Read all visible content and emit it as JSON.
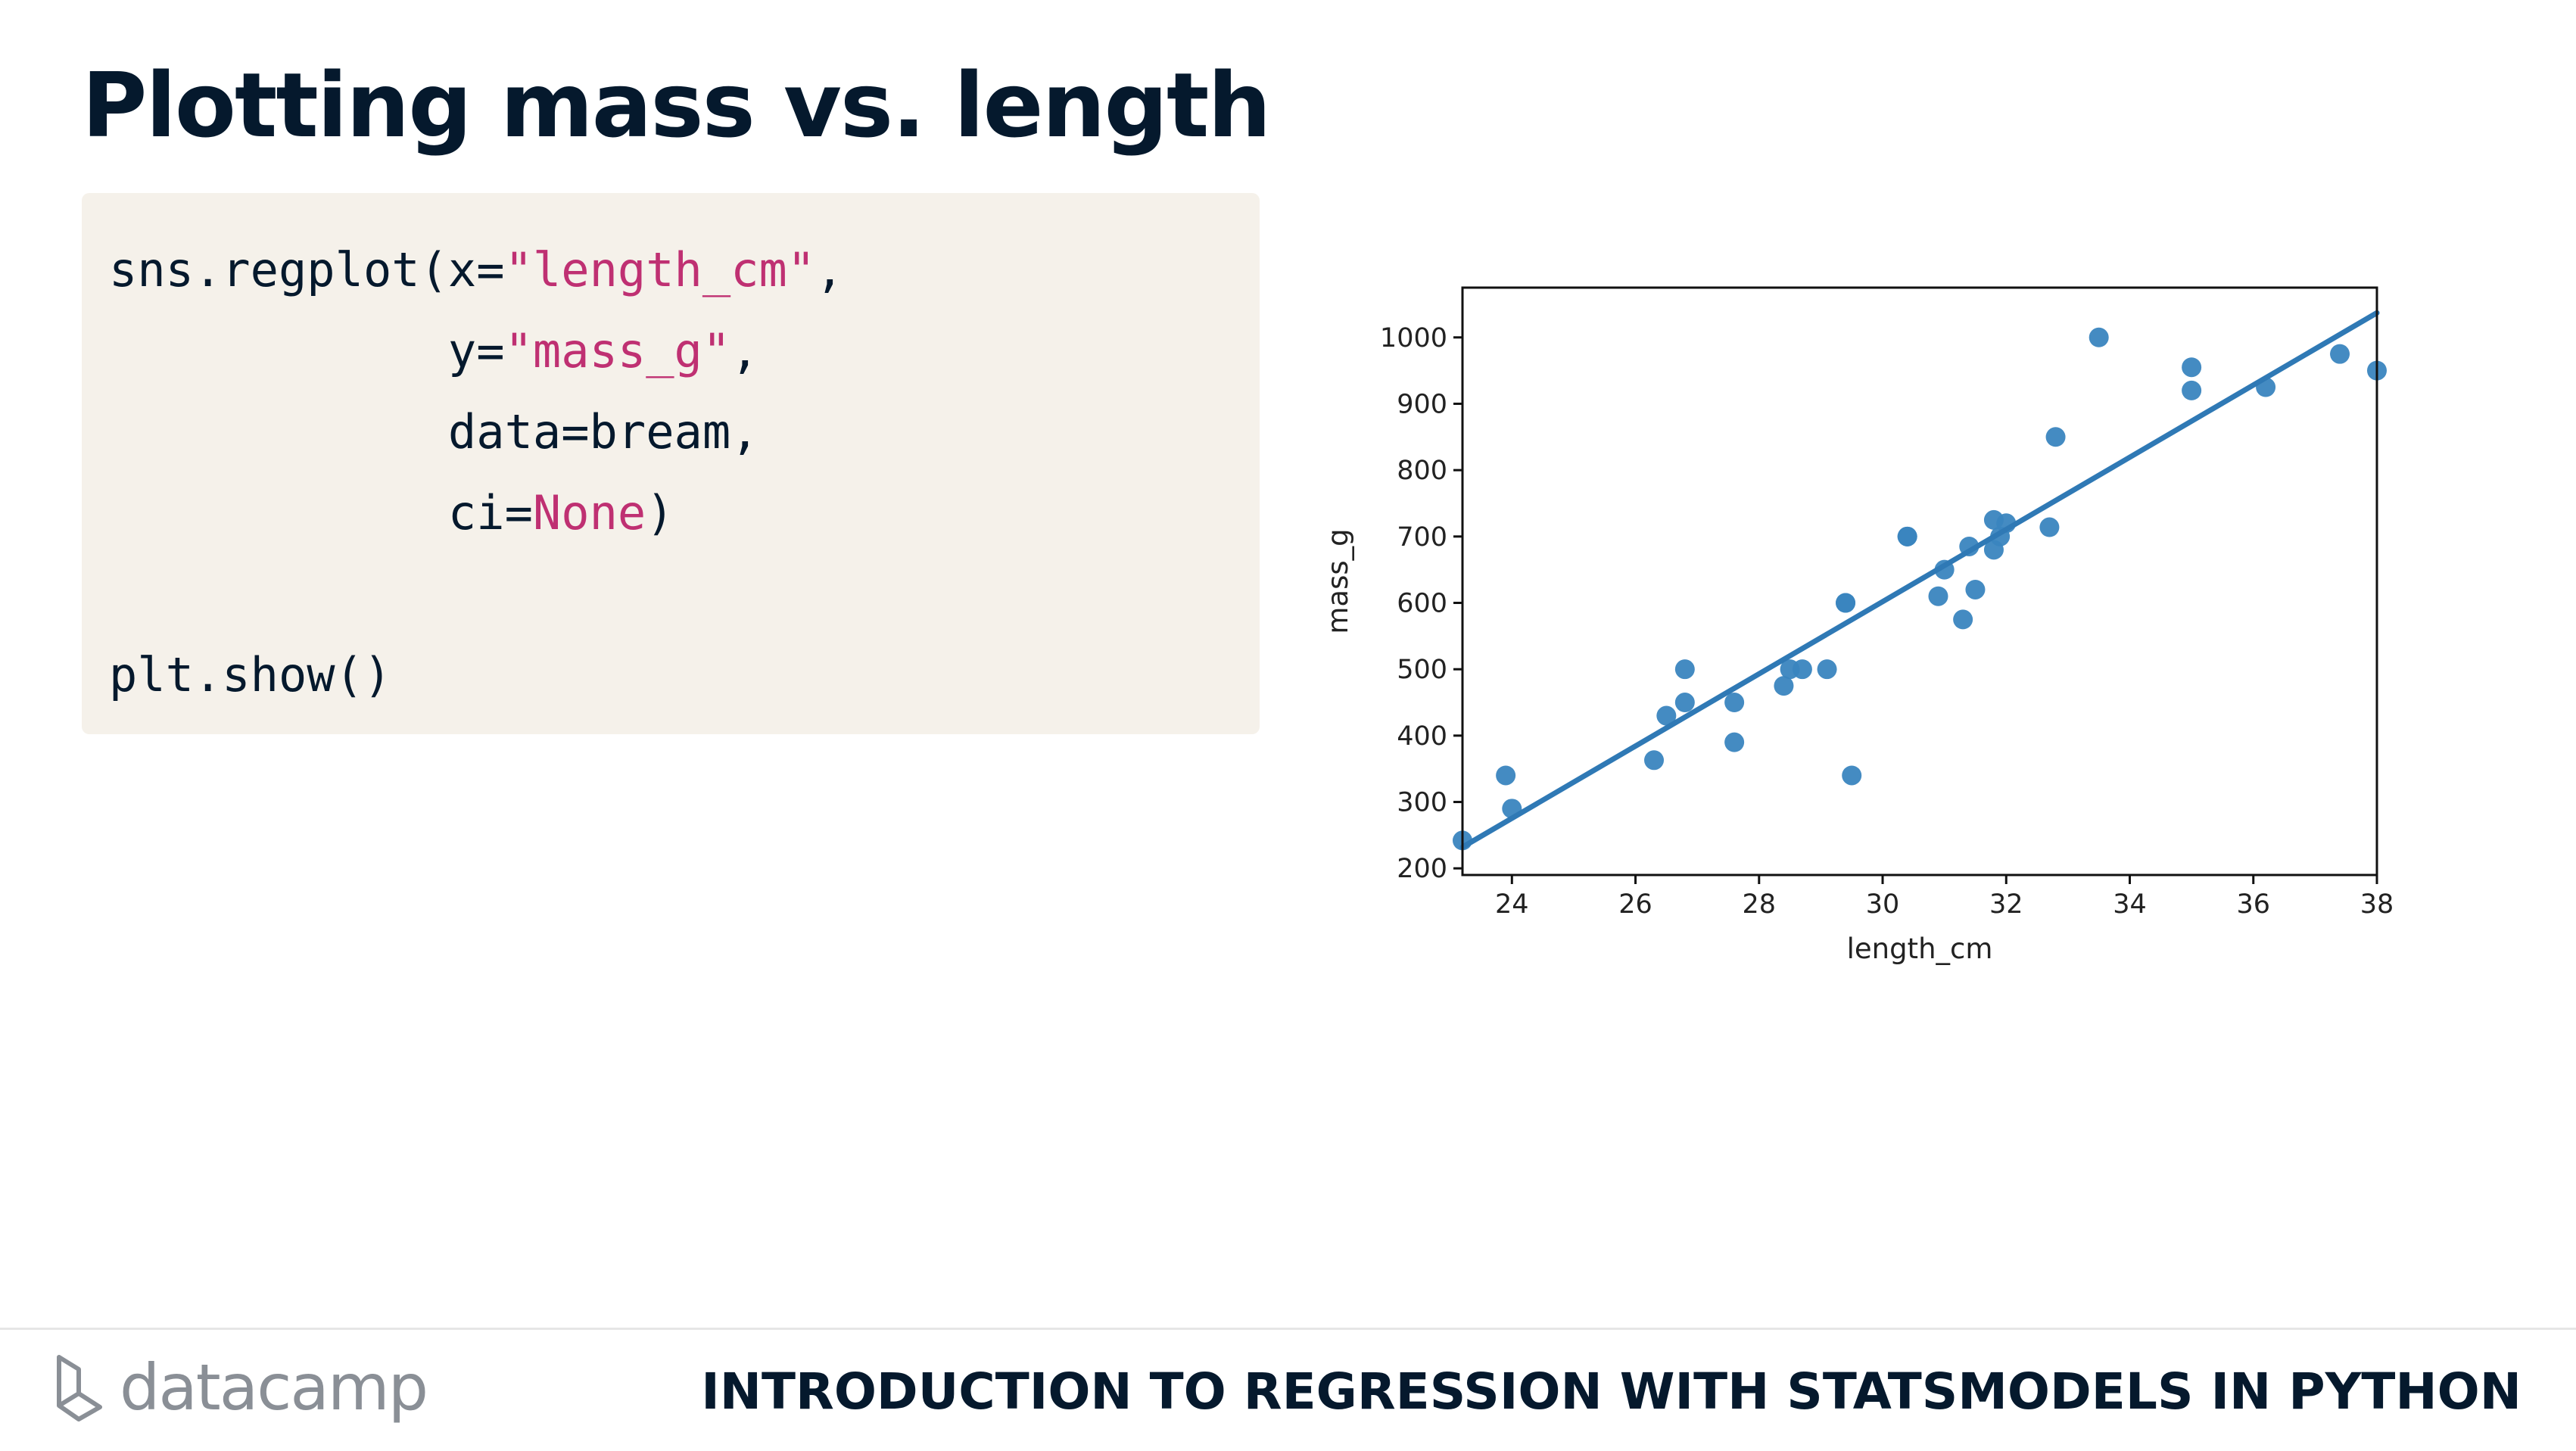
{
  "slide": {
    "title": "Plotting mass vs. length",
    "course_title": "INTRODUCTION TO REGRESSION WITH STATSMODELS IN PYTHON",
    "logo_text": "datacamp"
  },
  "code": {
    "l1_a": "sns.regplot(x=",
    "l1_s": "\"length_cm\"",
    "l1_b": ",",
    "l2_a": "            y=",
    "l2_s": "\"mass_g\"",
    "l2_b": ",",
    "l3": "            data=bream,",
    "l4_a": "            ci=",
    "l4_s": "None",
    "l4_b": ")",
    "l6": "plt.show()"
  },
  "colors": {
    "title": "#05192d",
    "code_bg": "#f5f1ea",
    "string": "#bf3072",
    "point": "#3a85bf",
    "line": "#2f79b5"
  },
  "chart_data": {
    "type": "scatter",
    "title": "",
    "xlabel": "length_cm",
    "ylabel": "mass_g",
    "xlim": [
      23.2,
      38.0
    ],
    "ylim": [
      190,
      1075
    ],
    "xticks": [
      24,
      26,
      28,
      30,
      32,
      34,
      36,
      38
    ],
    "yticks": [
      200,
      300,
      400,
      500,
      600,
      700,
      800,
      900,
      1000
    ],
    "grid": false,
    "points": [
      {
        "x": 23.2,
        "y": 242
      },
      {
        "x": 23.9,
        "y": 340
      },
      {
        "x": 24.0,
        "y": 290
      },
      {
        "x": 26.3,
        "y": 363
      },
      {
        "x": 26.5,
        "y": 430
      },
      {
        "x": 26.8,
        "y": 450
      },
      {
        "x": 26.8,
        "y": 500
      },
      {
        "x": 27.6,
        "y": 390
      },
      {
        "x": 27.6,
        "y": 450
      },
      {
        "x": 28.4,
        "y": 475
      },
      {
        "x": 28.5,
        "y": 500
      },
      {
        "x": 28.7,
        "y": 500
      },
      {
        "x": 29.1,
        "y": 500
      },
      {
        "x": 29.4,
        "y": 600
      },
      {
        "x": 29.4,
        "y": 600
      },
      {
        "x": 29.5,
        "y": 340
      },
      {
        "x": 30.4,
        "y": 700
      },
      {
        "x": 30.4,
        "y": 700
      },
      {
        "x": 30.9,
        "y": 610
      },
      {
        "x": 31.0,
        "y": 650
      },
      {
        "x": 31.3,
        "y": 575
      },
      {
        "x": 31.4,
        "y": 685
      },
      {
        "x": 31.5,
        "y": 620
      },
      {
        "x": 31.8,
        "y": 680
      },
      {
        "x": 31.8,
        "y": 725
      },
      {
        "x": 31.9,
        "y": 700
      },
      {
        "x": 32.0,
        "y": 720
      },
      {
        "x": 32.7,
        "y": 714
      },
      {
        "x": 32.8,
        "y": 850
      },
      {
        "x": 33.5,
        "y": 1000
      },
      {
        "x": 35.0,
        "y": 920
      },
      {
        "x": 35.0,
        "y": 955
      },
      {
        "x": 36.2,
        "y": 925
      },
      {
        "x": 37.4,
        "y": 975
      },
      {
        "x": 38.0,
        "y": 950
      }
    ],
    "regression": {
      "x": [
        23.2,
        38.0
      ],
      "y": [
        232,
        1037
      ]
    }
  }
}
